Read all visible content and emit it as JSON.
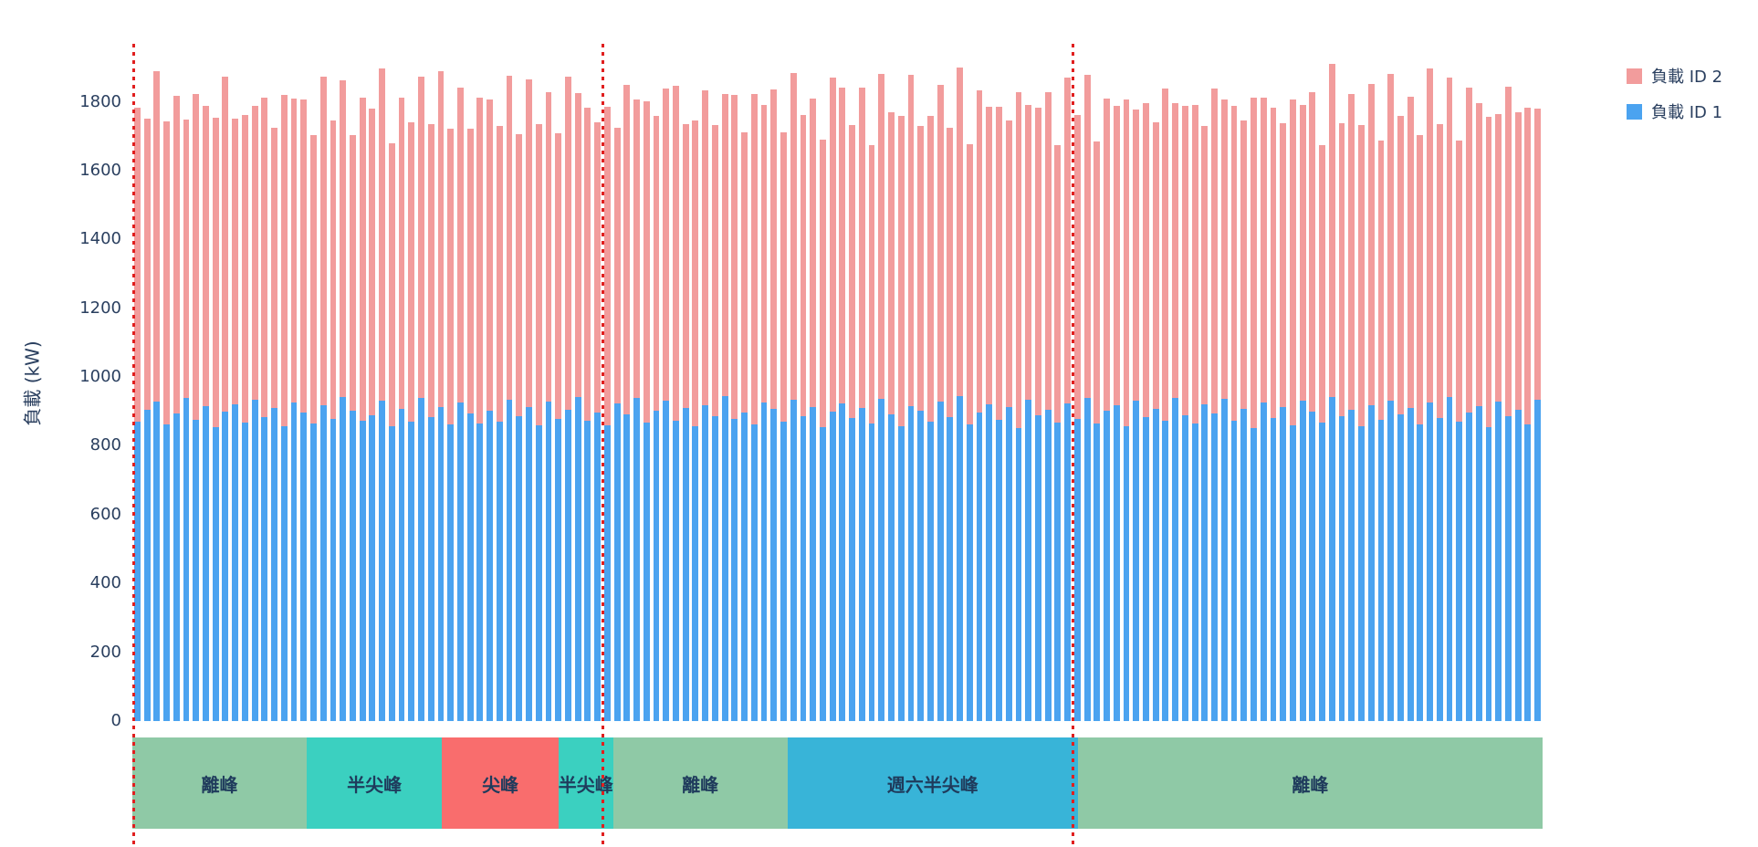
{
  "chart_data": {
    "type": "bar",
    "stacked": true,
    "title": "",
    "xlabel": "",
    "ylabel": "負載 (kW)",
    "ylim": [
      0,
      1950
    ],
    "yticks": [
      0,
      200,
      400,
      600,
      800,
      1000,
      1200,
      1400,
      1600,
      1800
    ],
    "axis_text_color": "#2a3f5f",
    "legend_position": "top-right",
    "grid": false,
    "legend": [
      {
        "name": "負載 ID 2",
        "color": "#f29c9c"
      },
      {
        "name": "負載 ID 1",
        "color": "#4ba3f0"
      }
    ],
    "x_hours_total": 72,
    "day_boundaries_hours": [
      0,
      24,
      48
    ],
    "day_boundary_color": "#e01f1f",
    "series": [
      {
        "name": "負載 ID 1",
        "color": "#4ba3f0",
        "values": [
          871,
          905,
          928,
          863,
          893,
          940,
          876,
          915,
          854,
          899,
          921,
          868,
          934,
          883,
          910,
          857,
          925,
          896,
          864,
          918,
          879,
          942,
          902,
          873,
          889,
          931,
          858,
          907,
          870,
          938,
          884,
          912,
          861,
          927,
          895,
          866,
          902,
          869,
          935,
          887,
          914,
          859,
          929,
          878,
          906,
          941,
          872,
          896,
          860,
          922,
          891,
          938,
          867,
          903,
          930,
          874,
          911,
          856,
          919,
          885,
          944,
          877,
          898,
          862,
          926,
          908,
          871,
          933,
          886,
          913,
          855,
          900,
          924,
          881,
          909,
          866,
          937,
          892,
          858,
          916,
          903,
          870,
          928,
          883,
          945,
          861,
          897,
          920,
          875,
          912,
          852,
          934,
          888,
          905,
          868,
          923,
          879,
          940,
          864,
          901,
          917,
          856,
          931,
          884,
          908,
          872,
          939,
          890,
          865,
          921,
          894,
          936,
          873,
          907,
          853,
          926,
          882,
          913,
          859,
          930,
          899,
          867,
          942,
          886,
          904,
          857,
          918,
          876,
          932,
          891,
          910,
          863,
          925,
          880,
          943,
          869,
          898,
          915,
          854,
          929,
          887,
          906,
          861,
          935
        ]
      },
      {
        "name": "負載 ID 2",
        "color": "#f29c9c",
        "values": [
          912,
          845,
          960,
          880,
          925,
          808,
          948,
          872,
          900,
          975,
          830,
          895,
          855,
          930,
          815,
          962,
          885,
          910,
          838,
          955,
          868,
          920,
          800,
          940,
          890,
          965,
          822,
          905,
          870,
          935,
          850,
          978,
          860,
          915,
          828,
          945,
          905,
          860,
          940,
          818,
          952,
          875,
          898,
          830,
          968,
          885,
          912,
          845,
          925,
          802,
          958,
          870,
          935,
          856,
          908,
          972,
          825,
          890,
          915,
          848,
          880,
          942,
          812,
          960,
          866,
          928,
          840,
          950,
          875,
          896,
          835,
          970,
          918,
          852,
          932,
          808,
          945,
          878,
          902,
          962,
          828,
          888,
          920,
          842,
          955,
          815,
          936,
          865,
          910,
          835,
          975,
          858,
          895,
          922,
          805,
          948,
          882,
          938,
          820,
          908,
          870,
          952,
          846,
          912,
          832,
          966,
          856,
          898,
          926,
          810,
          944,
          872,
          915,
          838,
          958,
          885,
          900,
          825,
          948,
          862,
          930,
          806,
          968,
          852,
          918,
          876,
          935,
          812,
          950,
          868,
          905,
          840,
          972,
          855,
          928,
          818,
          942,
          880,
          902,
          836,
          956,
          864,
          922,
          845
        ]
      }
    ],
    "tou_band": {
      "text_color": "#1f3b5c",
      "segments": [
        {
          "label": "離峰",
          "hours": 9,
          "color": "#8fc9a6"
        },
        {
          "label": "半尖峰",
          "hours": 7,
          "color": "#3bd0c0"
        },
        {
          "label": "尖峰",
          "hours": 6,
          "color": "#f96d6d"
        },
        {
          "label": "半尖峰",
          "hours": 2,
          "color": "#3bd0c0"
        },
        {
          "label": "離峰",
          "hours": 9,
          "color": "#8fc9a6"
        },
        {
          "label": "週六半尖峰",
          "hours": 15,
          "color": "#38b4d8"
        },
        {
          "label": "離峰",
          "hours": 24,
          "color": "#8fc9a6"
        }
      ]
    }
  }
}
